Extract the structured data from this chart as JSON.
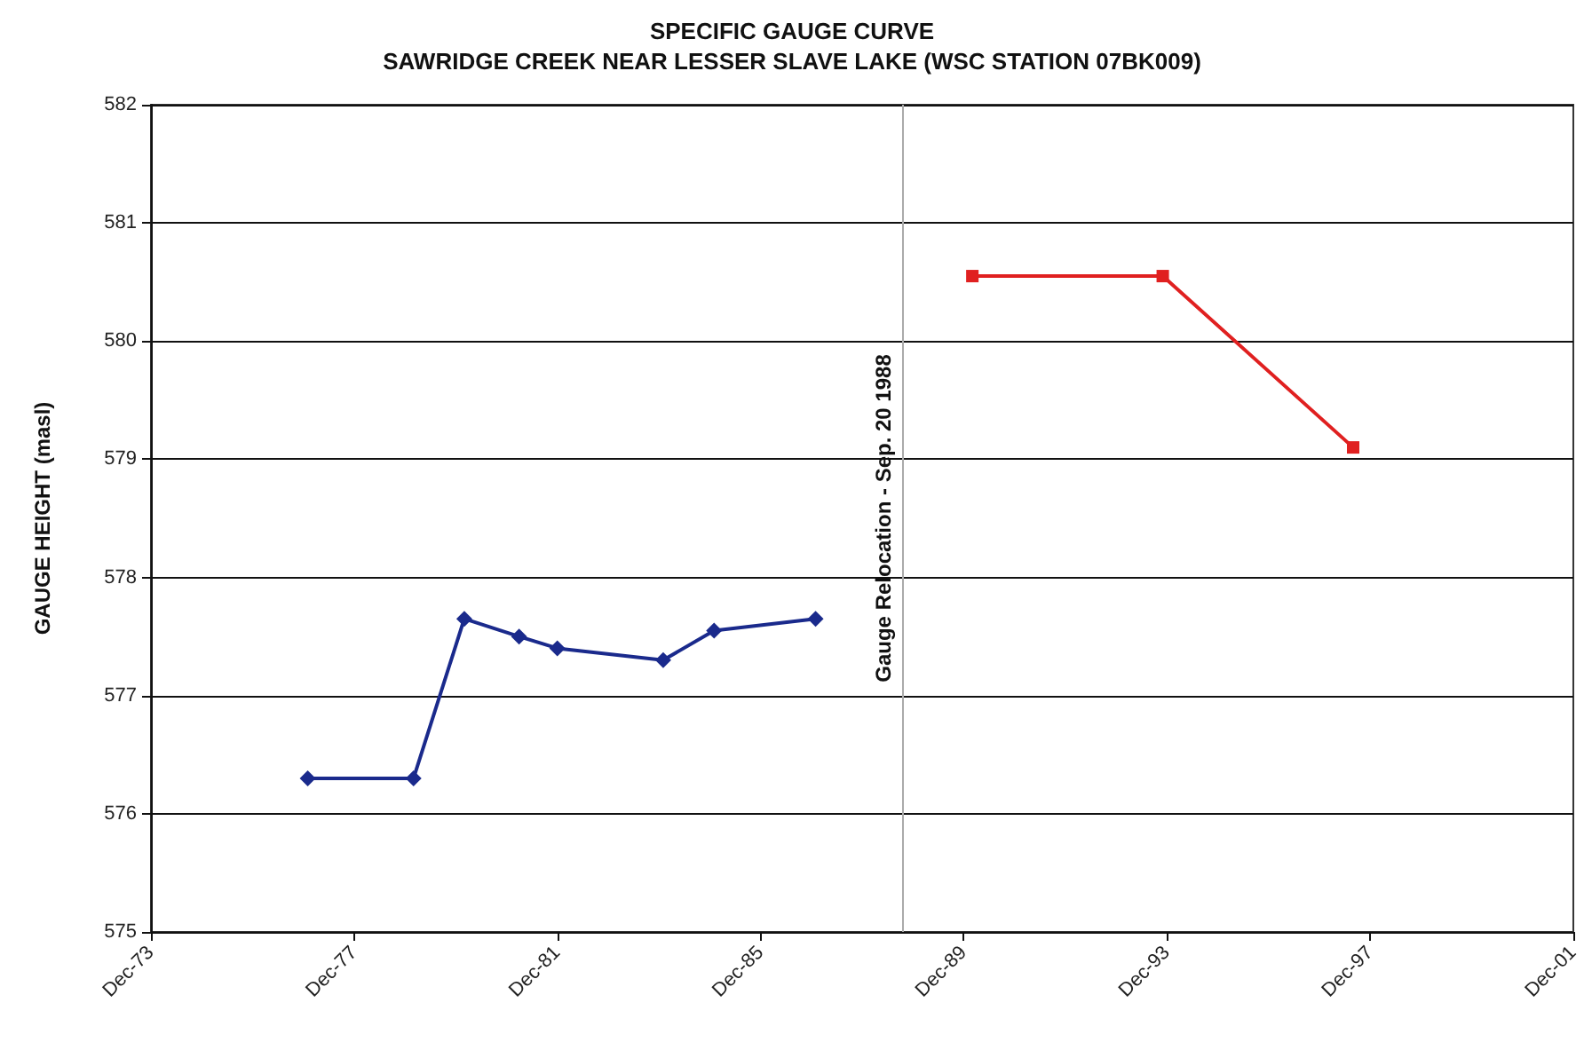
{
  "chart_data": {
    "type": "line",
    "title": "SPECIFIC GAUGE CURVE",
    "subtitle": "SAWRIDGE CREEK NEAR LESSER SLAVE LAKE (WSC STATION 07BK009)",
    "ylabel": "GAUGE HEIGHT (masl)",
    "series": [
      {
        "color": "#1a2a8c",
        "marker": "diamond",
        "x": [
          "1977-01",
          "1979-02",
          "1980-02",
          "1981-03",
          "1981-12",
          "1984-01",
          "1985-01",
          "1987-01"
        ],
        "values": [
          576.3,
          576.3,
          577.65,
          577.5,
          577.4,
          577.3,
          577.55,
          577.65
        ]
      },
      {
        "color": "#e02020",
        "marker": "square",
        "x": [
          "1990-02",
          "1993-11",
          "1997-08"
        ],
        "values": [
          580.55,
          580.55,
          579.1
        ]
      }
    ],
    "xlim": [
      "1973-12",
      "2001-12"
    ],
    "xticks": [
      {
        "value": "1973-12",
        "label": "Dec-73"
      },
      {
        "value": "1977-12",
        "label": "Dec-77"
      },
      {
        "value": "1981-12",
        "label": "Dec-81"
      },
      {
        "value": "1985-12",
        "label": "Dec-85"
      },
      {
        "value": "1989-12",
        "label": "Dec-89"
      },
      {
        "value": "1993-12",
        "label": "Dec-93"
      },
      {
        "value": "1997-12",
        "label": "Dec-97"
      },
      {
        "value": "2001-12",
        "label": "Dec-01"
      }
    ],
    "ylim": [
      575,
      582
    ],
    "yticks": [
      575,
      576,
      577,
      578,
      579,
      580,
      581,
      582
    ],
    "ref_lines": [
      {
        "axis": "x",
        "value": "1988-09-20",
        "label": "Gauge Relocation - Sep. 20 1988",
        "color": "#aaaaaa"
      }
    ],
    "grid": "y",
    "line_style": "solid"
  }
}
